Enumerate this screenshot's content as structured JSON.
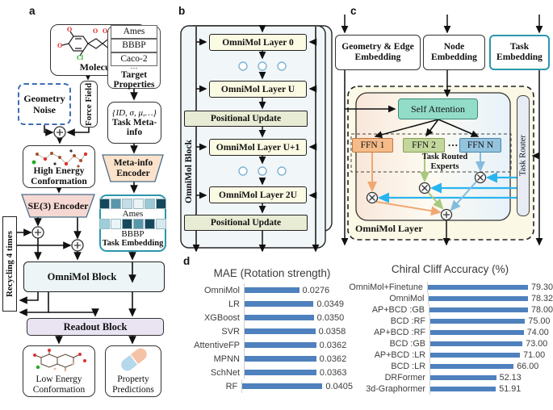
{
  "panel_letters": {
    "a": "a",
    "b": "b",
    "c": "c",
    "d": "d"
  },
  "panel_a": {
    "molecule": {
      "label": "Molecule",
      "atoms": {
        "o1": "O",
        "o2": "O",
        "o3": "O",
        "o4": "O",
        "o5": "O",
        "cl": "Cl"
      }
    },
    "target_properties": {
      "rows": [
        "Ames",
        "BBBP",
        "Caco-2"
      ],
      "ellipsis": "⋯",
      "label": "Target Properties"
    },
    "geometry_noise": "Geometry Noise",
    "force_field": "Force Field",
    "task_meta_info": {
      "set": "{ID, σ, μ,…}",
      "label": "Task Meta-info"
    },
    "high_energy": "High Energy Conformation",
    "meta_info_encoder": "Meta-info Encoder",
    "se3_encoder": "SE(3) Encoder",
    "task_embedding": {
      "ames": "Ames",
      "bbbp": "BBBP",
      "label": "Task Embedding",
      "ames_colors": [
        "#16485c",
        "#5897ab",
        "#c3dde6",
        "#eaf4f6",
        "#9cc8d6",
        "#16485c"
      ],
      "bbbp_colors": [
        "#9ccfdb",
        "#eaf4f6",
        "#16485c",
        "#5897ab",
        "#16485c",
        "#d5e9ef"
      ]
    },
    "recycling": "Recycling 4 times",
    "omnimol_block": "OmniMol Block",
    "readout_block": "Readout Block",
    "low_energy": "Low Energy Conformation",
    "property_predictions": "Property Predictions"
  },
  "panel_b": {
    "block_label": "OmniMol Block",
    "layers": [
      "OmniMol Layer 0",
      "OmniMol Layer U",
      "OmniMol Layer U+1",
      "OmniMol Layer 2U"
    ],
    "positional_update": "Positional Update"
  },
  "panel_c": {
    "geometry_edge_embedding": "Geometry & Edge Embedding",
    "node_embedding": "Node Embedding",
    "task_embedding": "Task Embedding",
    "self_attention": "Self Attention",
    "ffn1": "FFN 1",
    "ffn2": "FFN 2",
    "ffn_dots": "···",
    "ffnN": "FFN N",
    "task_routed_experts": "Task Routed Experts",
    "task_router": "Task Router",
    "omnimol_layer": "OmniMol Layer"
  },
  "chart_data": [
    {
      "type": "bar",
      "orientation": "horizontal",
      "title": "MAE (Rotation strength)",
      "categories": [
        "OmniMol",
        "LR",
        "XGBoost",
        "SVR",
        "AttentiveFP",
        "MPNN",
        "SchNet",
        "RF"
      ],
      "values": [
        0.0276,
        0.0349,
        0.035,
        0.0358,
        0.0362,
        0.0362,
        0.0363,
        0.0405
      ],
      "value_labels": [
        "0.0276",
        "0.0349",
        "0.0350",
        "0.0358",
        "0.0362",
        "0.0362",
        "0.0363",
        "0.0405"
      ],
      "xlim": [
        0,
        0.0425
      ],
      "xlabel": "",
      "ylabel": "",
      "grid": false,
      "bar_color": "#4e81bd"
    },
    {
      "type": "bar",
      "orientation": "horizontal",
      "title": "Chiral Cliff Accuracy (%)",
      "categories": [
        "OmniMol+Finetune",
        "OmniMol",
        "AP+BCD :GB",
        "BCD :RF",
        "AP+BCD :RF",
        "BCD :GB",
        "AP+BCD :LR",
        "BCD :LR",
        "DRFormer",
        "3d-Graphormer"
      ],
      "values": [
        79.3,
        78.32,
        78.0,
        75.0,
        74.0,
        73.0,
        71.0,
        66.0,
        52.13,
        51.91
      ],
      "value_labels": [
        "79.30",
        "78.32",
        "78.00",
        "75.00",
        "74.00",
        "73.00",
        "71.00",
        "66.00",
        "52.13",
        "51.91"
      ],
      "xlim": [
        0,
        85
      ],
      "xlabel": "",
      "ylabel": "",
      "grid": false,
      "bar_color": "#4e81bd"
    }
  ],
  "colors": {
    "bar_blue": "#4e81bd",
    "router_arrow_cyan": "#29b4ef",
    "ffn1_orange": "#f6bb8a",
    "ffn2_green": "#c3d79c",
    "ffnN_blue": "#94c3de",
    "self_attention_teal": "#93dcc8",
    "task_embedding_border_teal": "#2b96ad",
    "geometry_noise_border_blue": "#3f6eb5",
    "se3_encoder_pink": "#f6d8d3",
    "meta_info_encoder_peach": "#fbe3cb"
  }
}
